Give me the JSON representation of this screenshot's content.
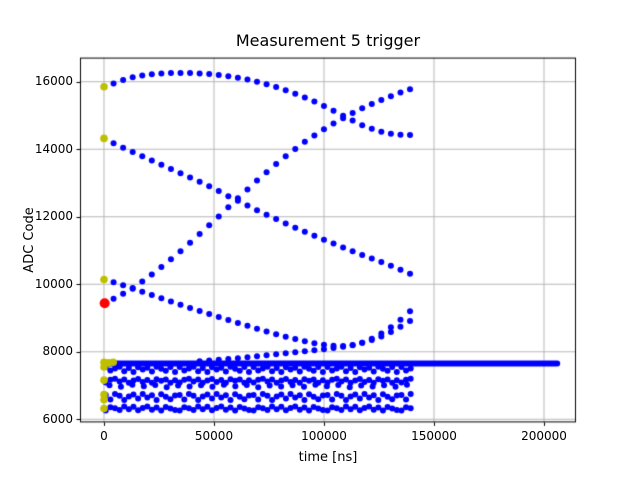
{
  "chart_data": {
    "type": "scatter",
    "title": "Measurement 5 trigger",
    "xlabel": "time [ns]",
    "ylabel": "ADC Code",
    "xlim": [
      -10909,
      214545
    ],
    "ylim": [
      5908,
      16714
    ],
    "xticks": [
      0,
      50000,
      100000,
      150000,
      200000
    ],
    "xtick_labels": [
      "0",
      "50000",
      "100000",
      "150000",
      "200000"
    ],
    "yticks": [
      6000,
      8000,
      10000,
      12000,
      14000,
      16000
    ],
    "ytick_labels": [
      "6000",
      "8000",
      "10000",
      "12000",
      "14000",
      "16000"
    ],
    "grid": true,
    "grid_color": "#b0b0b0",
    "spine_color": "#000000",
    "background": "#ffffff",
    "legend": false,
    "colors": {
      "trace": "#0000ff",
      "start_marker": "#bfbf00",
      "trigger_marker": "#ff0000"
    },
    "series": [
      {
        "name": "pedestal-band",
        "type": "line",
        "color": "#0000ff",
        "linewidth": 6,
        "points": [
          [
            0,
            7655
          ],
          [
            206000,
            7655
          ]
        ]
      },
      {
        "name": "noise-row-1",
        "type": "scatter-gen",
        "color": "#0000ff",
        "markersize": 6,
        "generator": {
          "base": 7480,
          "amp": 80,
          "t0": 800,
          "t1": 139500,
          "step": 2100,
          "pattern": [
            0.9,
            -0.4,
            0.3,
            1,
            -0.7,
            0.5,
            -1,
            0.8,
            -0.1,
            0.6,
            -0.8,
            1,
            0.2,
            -0.5,
            0.9,
            -1
          ]
        }
      },
      {
        "name": "noise-row-2",
        "type": "scatter-gen",
        "color": "#0000ff",
        "markersize": 6,
        "generator": {
          "base": 7140,
          "amp": 60,
          "t0": 800,
          "t1": 139500,
          "step": 2100,
          "pattern": [
            -0.8,
            0.5,
            1,
            -0.3,
            0.7,
            -1,
            0.2,
            0.9,
            -0.6,
            0.4,
            -1,
            0.8,
            0,
            0.6,
            -0.9,
            0.3
          ]
        }
      },
      {
        "name": "noise-row-2b",
        "type": "scatter-gen",
        "color": "#0000ff",
        "markersize": 6,
        "generator": {
          "base": 6990,
          "amp": 40,
          "t0": 2500,
          "t1": 139500,
          "step": 5200,
          "pattern": [
            0.5,
            -0.7,
            0.9,
            -0.2,
            0.6,
            -1,
            0.3,
            -0.5
          ]
        }
      },
      {
        "name": "noise-row-3",
        "type": "scatter-gen",
        "color": "#0000ff",
        "markersize": 6,
        "generator": {
          "base": 6660,
          "amp": 90,
          "t0": 800,
          "t1": 139500,
          "step": 2100,
          "pattern": [
            0.7,
            -0.8,
            1,
            0.4,
            -1,
            0.2,
            0.8,
            -0.5,
            1,
            -0.2,
            0.6,
            -1,
            0.9,
            0.1,
            -0.7,
            0.5
          ]
        }
      },
      {
        "name": "noise-row-4",
        "type": "scatter-gen",
        "color": "#0000ff",
        "markersize": 6,
        "generator": {
          "base": 6320,
          "amp": 60,
          "t0": 800,
          "t1": 139500,
          "step": 2100,
          "pattern": [
            -1,
            0.6,
            0.1,
            -0.7,
            1,
            -0.4,
            0.8,
            -0.9,
            0.3,
            1,
            -0.6,
            0.5,
            -1,
            0.7,
            0,
            -0.8
          ]
        }
      },
      {
        "name": "waveform-top",
        "type": "scatter",
        "color": "#0000ff",
        "markersize": 6,
        "points": [
          [
            0,
            15850
          ],
          [
            4350,
            15950
          ],
          [
            8690,
            16050
          ],
          [
            13040,
            16130
          ],
          [
            17390,
            16185
          ],
          [
            21740,
            16220
          ],
          [
            26080,
            16245
          ],
          [
            30430,
            16255
          ],
          [
            34780,
            16258
          ],
          [
            39120,
            16255
          ],
          [
            43470,
            16245
          ],
          [
            47820,
            16225
          ],
          [
            52160,
            16200
          ],
          [
            56510,
            16165
          ],
          [
            60860,
            16120
          ],
          [
            65210,
            16065
          ],
          [
            69550,
            16000
          ],
          [
            73900,
            15925
          ],
          [
            78250,
            15840
          ],
          [
            82590,
            15745
          ],
          [
            86940,
            15645
          ],
          [
            91290,
            15530
          ],
          [
            95630,
            15410
          ],
          [
            99980,
            15280
          ],
          [
            104330,
            15140
          ],
          [
            108680,
            14995
          ],
          [
            113020,
            14850
          ],
          [
            117370,
            14710
          ],
          [
            121720,
            14610
          ],
          [
            126060,
            14520
          ],
          [
            130410,
            14460
          ],
          [
            134760,
            14430
          ],
          [
            139100,
            14420
          ]
        ]
      },
      {
        "name": "waveform-upper-falling",
        "type": "scatter",
        "color": "#0000ff",
        "markersize": 6,
        "points": [
          [
            0,
            14320
          ],
          [
            4350,
            14180
          ],
          [
            8690,
            14045
          ],
          [
            13040,
            13915
          ],
          [
            17390,
            13790
          ],
          [
            21740,
            13665
          ],
          [
            26080,
            13540
          ],
          [
            30430,
            13415
          ],
          [
            34780,
            13290
          ],
          [
            39120,
            13165
          ],
          [
            43470,
            13040
          ],
          [
            47820,
            12905
          ],
          [
            52160,
            12760
          ],
          [
            56510,
            12610
          ],
          [
            60860,
            12470
          ],
          [
            65210,
            12330
          ],
          [
            69550,
            12195
          ],
          [
            73900,
            12060
          ],
          [
            78250,
            11930
          ],
          [
            82590,
            11800
          ],
          [
            86940,
            11675
          ],
          [
            91290,
            11555
          ],
          [
            95630,
            11435
          ],
          [
            99980,
            11320
          ],
          [
            104330,
            11205
          ],
          [
            108680,
            11090
          ],
          [
            113020,
            10980
          ],
          [
            117370,
            10870
          ],
          [
            121720,
            10765
          ],
          [
            126060,
            10660
          ],
          [
            130410,
            10550
          ],
          [
            134760,
            10430
          ],
          [
            139100,
            10310
          ]
        ]
      },
      {
        "name": "waveform-rising",
        "type": "scatter",
        "color": "#0000ff",
        "markersize": 6,
        "points": [
          [
            4350,
            9570
          ],
          [
            8690,
            9720
          ],
          [
            13040,
            9890
          ],
          [
            17390,
            10080
          ],
          [
            21740,
            10290
          ],
          [
            26080,
            10510
          ],
          [
            30430,
            10740
          ],
          [
            34780,
            10980
          ],
          [
            39120,
            11230
          ],
          [
            43470,
            11490
          ],
          [
            47820,
            11750
          ],
          [
            52160,
            12010
          ],
          [
            56510,
            12280
          ],
          [
            60860,
            12550
          ],
          [
            65210,
            12810
          ],
          [
            69550,
            13070
          ],
          [
            73900,
            13320
          ],
          [
            78250,
            13560
          ],
          [
            82590,
            13790
          ],
          [
            86940,
            14010
          ],
          [
            91290,
            14220
          ],
          [
            95630,
            14410
          ],
          [
            99980,
            14590
          ],
          [
            104330,
            14760
          ],
          [
            108680,
            14920
          ],
          [
            113020,
            15070
          ],
          [
            117370,
            15210
          ],
          [
            121720,
            15340
          ],
          [
            126060,
            15460
          ],
          [
            130410,
            15570
          ],
          [
            134760,
            15680
          ],
          [
            139100,
            15780
          ]
        ]
      },
      {
        "name": "waveform-lower-falling",
        "type": "scatter",
        "color": "#0000ff",
        "markersize": 6,
        "points": [
          [
            0,
            10140
          ],
          [
            4350,
            10060
          ],
          [
            8690,
            9970
          ],
          [
            13040,
            9870
          ],
          [
            17390,
            9775
          ],
          [
            21740,
            9680
          ],
          [
            26080,
            9585
          ],
          [
            30430,
            9490
          ],
          [
            34780,
            9395
          ],
          [
            39120,
            9300
          ],
          [
            43470,
            9210
          ],
          [
            47820,
            9120
          ],
          [
            52160,
            9030
          ],
          [
            56510,
            8940
          ],
          [
            60860,
            8855
          ],
          [
            65210,
            8770
          ],
          [
            69550,
            8685
          ],
          [
            73900,
            8600
          ],
          [
            78250,
            8520
          ],
          [
            82590,
            8445
          ],
          [
            86940,
            8375
          ],
          [
            91290,
            8310
          ],
          [
            95630,
            8255
          ],
          [
            99980,
            8210
          ],
          [
            104330,
            8180
          ],
          [
            108680,
            8170
          ],
          [
            113020,
            8195
          ],
          [
            117370,
            8265
          ],
          [
            121720,
            8385
          ],
          [
            126060,
            8540
          ],
          [
            130410,
            8725
          ],
          [
            134760,
            8950
          ],
          [
            139100,
            9200
          ]
        ]
      },
      {
        "name": "waveform-band-hugger",
        "type": "scatter",
        "color": "#0000ff",
        "markersize": 6,
        "points": [
          [
            43470,
            7720
          ],
          [
            47820,
            7740
          ],
          [
            52160,
            7762
          ],
          [
            56510,
            7785
          ],
          [
            60860,
            7810
          ],
          [
            65210,
            7838
          ],
          [
            69550,
            7868
          ],
          [
            73900,
            7898
          ],
          [
            78250,
            7928
          ],
          [
            82590,
            7958
          ],
          [
            86940,
            7988
          ],
          [
            91290,
            8015
          ],
          [
            95630,
            8045
          ],
          [
            99980,
            8075
          ],
          [
            104330,
            8110
          ],
          [
            108680,
            8150
          ],
          [
            113020,
            8200
          ],
          [
            117370,
            8265
          ],
          [
            121720,
            8350
          ],
          [
            126060,
            8455
          ],
          [
            130410,
            8585
          ],
          [
            134760,
            8740
          ],
          [
            139100,
            8915
          ]
        ]
      },
      {
        "name": "start-markers",
        "type": "scatter",
        "color": "#bfbf00",
        "markersize": 7.6,
        "points": [
          [
            0,
            15850
          ],
          [
            0,
            14320
          ],
          [
            0,
            10140
          ],
          [
            0,
            7690
          ],
          [
            2100,
            7670
          ],
          [
            4200,
            7690
          ],
          [
            0,
            7550
          ],
          [
            0,
            7160
          ],
          [
            0,
            6730
          ],
          [
            0,
            6580
          ],
          [
            0,
            6320
          ]
        ]
      },
      {
        "name": "trigger-marker",
        "type": "scatter",
        "color": "#ff0000",
        "markersize": 10,
        "points": [
          [
            300,
            9440
          ]
        ]
      }
    ]
  }
}
